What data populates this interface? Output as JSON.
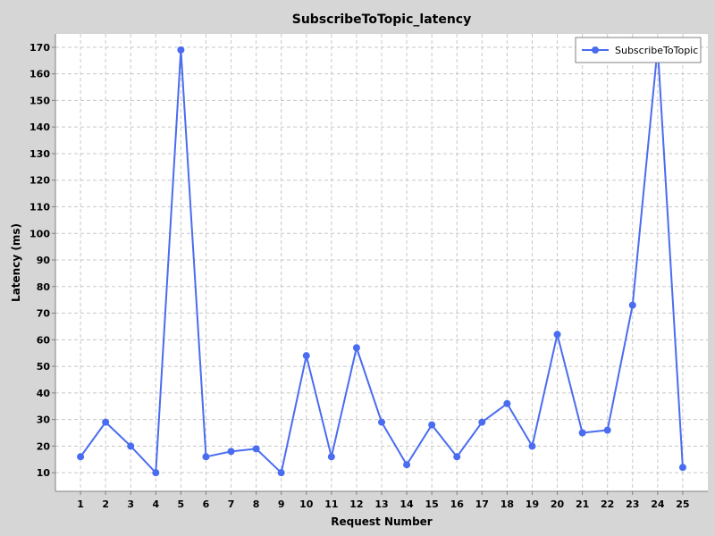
{
  "chart_data": {
    "type": "line",
    "title": "SubscribeToTopic_latency",
    "xlabel": "Request Number",
    "ylabel": "Latency (ms)",
    "x": [
      1,
      2,
      3,
      4,
      5,
      6,
      7,
      8,
      9,
      10,
      11,
      12,
      13,
      14,
      15,
      16,
      17,
      18,
      19,
      20,
      21,
      22,
      23,
      24,
      25
    ],
    "series": [
      {
        "name": "SubscribeToTopic",
        "color": "#4a6cf0",
        "values": [
          16,
          29,
          20,
          10,
          169,
          16,
          18,
          19,
          10,
          54,
          16,
          57,
          29,
          13,
          28,
          16,
          29,
          36,
          20,
          62,
          25,
          26,
          73,
          170,
          12
        ]
      }
    ],
    "xlim": [
      0,
      26
    ],
    "ylim": [
      3,
      175
    ],
    "yticks": [
      10,
      20,
      30,
      40,
      50,
      60,
      70,
      80,
      90,
      100,
      110,
      120,
      130,
      140,
      150,
      160,
      170
    ],
    "grid": true,
    "legend_position": "top-right"
  }
}
